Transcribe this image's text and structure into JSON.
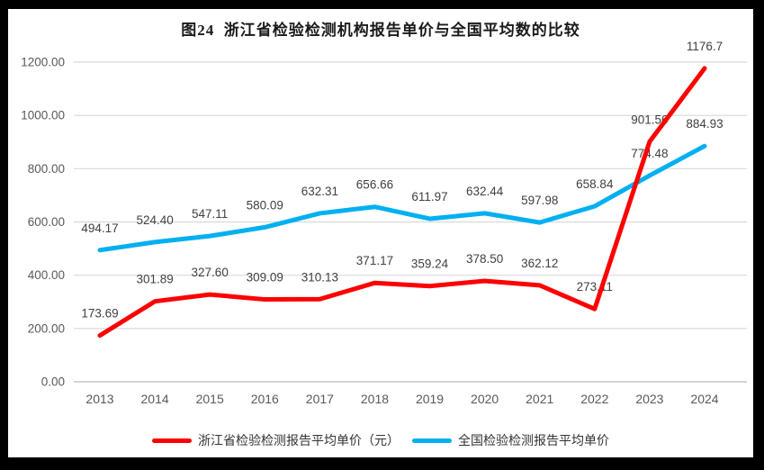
{
  "colors": {
    "frame_background": "#000000",
    "canvas_background": "#FFFFFF",
    "gridline": "#D9D9D9",
    "axis_line": "#C6C6C6",
    "zhejiang_line": "#FF0000",
    "national_line": "#00B0F0"
  },
  "chart_data": {
    "type": "line",
    "title": "图24  浙江省检验检测机构报告单价与全国平均数的比较",
    "categories": [
      "2013",
      "2014",
      "2015",
      "2016",
      "2017",
      "2018",
      "2019",
      "2020",
      "2021",
      "2022",
      "2023",
      "2024"
    ],
    "series": [
      {
        "name": "浙江省检验检测报告平均单价（元）",
        "color": "#FF0000",
        "values": [
          173.69,
          301.89,
          327.6,
          309.09,
          310.13,
          371.17,
          359.24,
          378.5,
          362.12,
          273.11,
          901.56,
          1176.7
        ],
        "labels": [
          "173.69",
          "301.89",
          "327.60",
          "309.09",
          "310.13",
          "371.17",
          "359.24",
          "378.50",
          "362.12",
          "273.11",
          "901.56",
          "1176.7"
        ]
      },
      {
        "name": "全国检验检测报告平均单价",
        "color": "#00B0F0",
        "values": [
          494.17,
          524.4,
          547.11,
          580.09,
          632.31,
          656.66,
          611.97,
          632.44,
          597.98,
          658.84,
          774.48,
          884.93
        ],
        "labels": [
          "494.17",
          "524.40",
          "547.11",
          "580.09",
          "632.31",
          "656.66",
          "611.97",
          "632.44",
          "597.98",
          "658.84",
          "774.48",
          "884.93"
        ]
      }
    ],
    "ylim": [
      0,
      1200
    ],
    "ytick_step": 200,
    "ytick_labels": [
      "0.00",
      "200.00",
      "400.00",
      "600.00",
      "800.00",
      "1000.00",
      "1200.00"
    ],
    "grid": true,
    "legend_position": "bottom"
  }
}
